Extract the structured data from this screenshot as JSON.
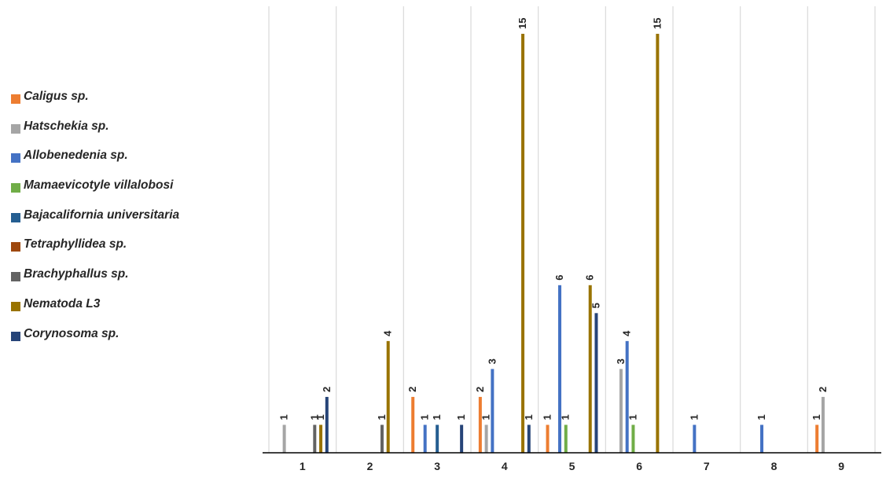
{
  "chart_data": {
    "type": "bar",
    "orientation": "vertical",
    "title": "",
    "xlabel": "",
    "ylabel": "",
    "categories": [
      "1",
      "2",
      "3",
      "4",
      "5",
      "6",
      "7",
      "8",
      "9"
    ],
    "ylim": [
      0,
      15
    ],
    "grid": "vertical lines between categories",
    "legend_position": "left",
    "data_labels": true,
    "series": [
      {
        "name": "Caligus sp.",
        "color": "#ED7D31",
        "values": [
          0,
          0,
          2,
          2,
          1,
          0,
          0,
          0,
          1
        ]
      },
      {
        "name": "Hatschekia sp.",
        "color": "#A5A5A5",
        "values": [
          1,
          0,
          0,
          1,
          0,
          3,
          0,
          0,
          2
        ]
      },
      {
        "name": "Allobenedenia sp.",
        "color": "#4472C4",
        "values": [
          0,
          0,
          1,
          3,
          6,
          4,
          1,
          1,
          0
        ]
      },
      {
        "name": "Mamaevicotyle villalobosi",
        "color": "#70AD47",
        "values": [
          0,
          0,
          0,
          0,
          1,
          1,
          0,
          0,
          0
        ]
      },
      {
        "name": "Bajacalifornia universitaria",
        "color": "#255E91",
        "values": [
          0,
          0,
          1,
          0,
          0,
          0,
          0,
          0,
          0
        ]
      },
      {
        "name": "Tetraphyllidea sp.",
        "color": "#9E480E",
        "values": [
          0,
          0,
          0,
          0,
          0,
          0,
          0,
          0,
          0
        ]
      },
      {
        "name": "Brachyphallus sp.",
        "color": "#636363",
        "values": [
          1,
          1,
          0,
          0,
          0,
          0,
          0,
          0,
          0
        ]
      },
      {
        "name": "Nematoda L3",
        "color": "#997300",
        "values": [
          1,
          4,
          0,
          15,
          6,
          15,
          0,
          0,
          0
        ]
      },
      {
        "name": "Corynosoma sp.",
        "color": "#264478",
        "values": [
          2,
          0,
          1,
          1,
          5,
          0,
          0,
          0,
          0
        ]
      }
    ]
  }
}
